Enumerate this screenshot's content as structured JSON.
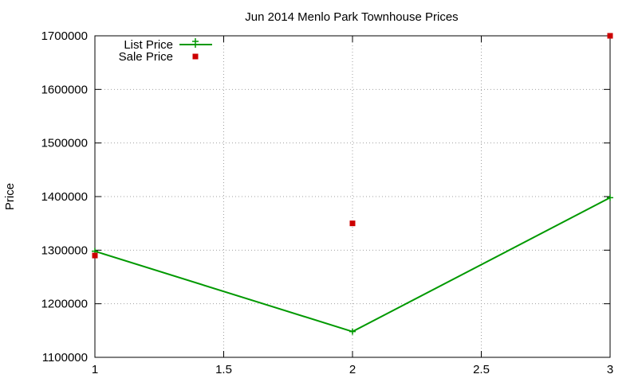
{
  "chart_data": {
    "type": "line",
    "title": "Jun 2014 Menlo Park Townhouse Prices",
    "xlabel": "",
    "ylabel": "Price",
    "xlim": [
      1,
      3
    ],
    "ylim": [
      1100000,
      1700000
    ],
    "xticks": [
      "1",
      "1.5",
      "2",
      "2.5",
      "3"
    ],
    "xtick_values": [
      1,
      1.5,
      2,
      2.5,
      3
    ],
    "yticks": [
      "1100000",
      "1200000",
      "1300000",
      "1400000",
      "1500000",
      "1600000",
      "1700000"
    ],
    "ytick_values": [
      1100000,
      1200000,
      1300000,
      1400000,
      1500000,
      1600000,
      1700000
    ],
    "grid": true,
    "legend_position": "top-left",
    "series": [
      {
        "name": "List Price",
        "style": "line-with-plus-markers",
        "color": "#009900",
        "points": [
          [
            1,
            1298000
          ],
          [
            2,
            1148000
          ],
          [
            3,
            1398000
          ]
        ]
      },
      {
        "name": "Sale Price",
        "style": "square-markers",
        "color": "#cc0000",
        "points": [
          [
            1,
            1290000
          ],
          [
            2,
            1350000
          ],
          [
            3,
            1700000
          ]
        ]
      }
    ]
  }
}
